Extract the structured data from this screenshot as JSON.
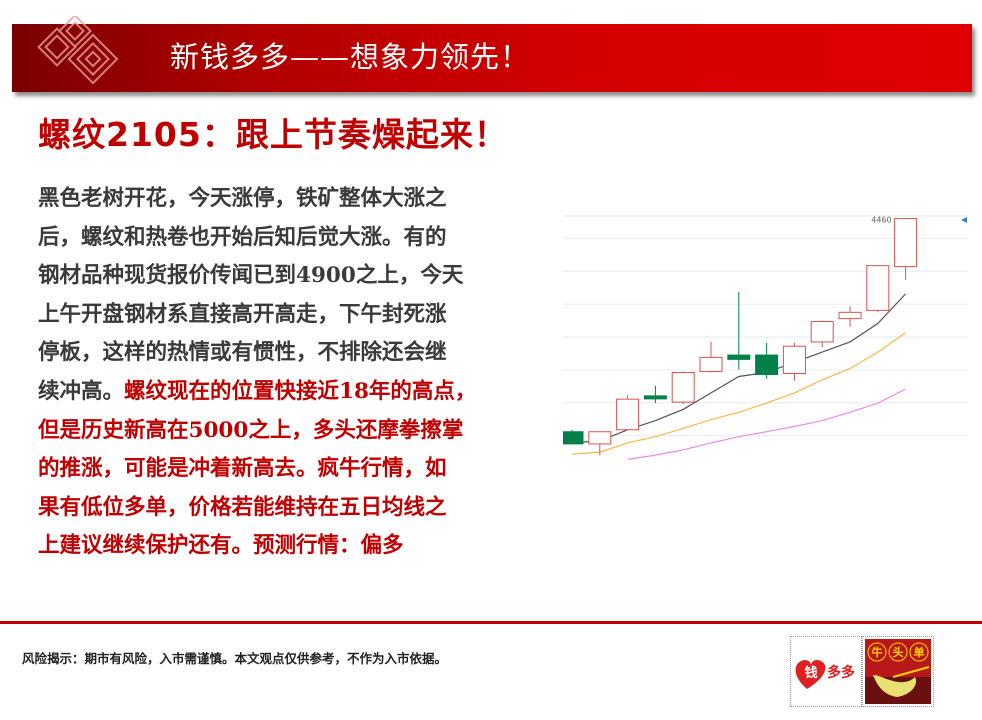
{
  "banner": {
    "title": "新钱多多——想象力领先！",
    "brand_color": "#d40000"
  },
  "headline": "螺纹2105：跟上节奏燥起来！",
  "body": {
    "lines": [
      {
        "black": "黑色老树开花，今天涨停，铁矿整体大涨之",
        "red": ""
      },
      {
        "black": "后，螺纹和热卷也开始后知后觉大涨。有的",
        "red": ""
      },
      {
        "black": "钢材品种现货报价传闻已到4900之上，今天",
        "red": ""
      },
      {
        "black": "上午开盘钢材系直接高开高走，下午封死涨",
        "red": ""
      },
      {
        "black": "停板，这样的热情或有惯性，不排除还会继",
        "red": ""
      },
      {
        "black": "续冲高。",
        "red": "螺纹现在的位置快接近18年的高点，"
      },
      {
        "black": "",
        "red": "但是历史新高在5000之上，多头还摩拳擦掌"
      },
      {
        "black": "",
        "red": "的推涨，可能是冲着新高去。疯牛行情，如"
      },
      {
        "black": "",
        "red": "果有低位多单，价格若能维持在五日均线之"
      },
      {
        "black": "",
        "red": "上建议继续保护还有。预测行情：偏多"
      }
    ],
    "text_color": "#3a3a3a",
    "highlight_color": "#c00000"
  },
  "chart_data": {
    "type": "candlestick",
    "ylim": [
      3720,
      4480
    ],
    "grid": true,
    "gridlines": [
      3800,
      3900,
      4000,
      4100,
      4200,
      4300,
      4400
    ],
    "annotation": "4460",
    "up_color": "#d9534f",
    "down_color": "#00814a",
    "candles": [
      {
        "open": 3812,
        "high": 3818,
        "low": 3775,
        "close": 3775
      },
      {
        "open": 3775,
        "high": 3812,
        "low": 3741,
        "close": 3812
      },
      {
        "open": 3818,
        "high": 3924,
        "low": 3818,
        "close": 3911
      },
      {
        "open": 3921,
        "high": 3952,
        "low": 3899,
        "close": 3914
      },
      {
        "open": 3902,
        "high": 3995,
        "low": 3896,
        "close": 3992
      },
      {
        "open": 3995,
        "high": 4085,
        "low": 3992,
        "close": 4038
      },
      {
        "open": 4045,
        "high": 4237,
        "low": 4001,
        "close": 4032
      },
      {
        "open": 4045,
        "high": 4082,
        "low": 3973,
        "close": 3986
      },
      {
        "open": 3989,
        "high": 4082,
        "low": 3967,
        "close": 4072
      },
      {
        "open": 4085,
        "high": 4150,
        "low": 4069,
        "close": 4147
      },
      {
        "open": 4156,
        "high": 4193,
        "low": 4131,
        "close": 4175
      },
      {
        "open": 4181,
        "high": 4317,
        "low": 4175,
        "close": 4317
      },
      {
        "open": 4314,
        "high": 4460,
        "low": 4274,
        "close": 4460
      }
    ],
    "series": [
      {
        "color": "#555555",
        "values": [
          3778,
          3784,
          3818,
          3846,
          3880,
          3930,
          3980,
          3992,
          4023,
          4054,
          4085,
          4141,
          4231
        ]
      },
      {
        "color": "#f5b94f",
        "values": [
          3744,
          3750,
          3778,
          3797,
          3822,
          3849,
          3871,
          3899,
          3930,
          3970,
          4004,
          4054,
          4113
        ]
      },
      {
        "color": "#f08ae8",
        "values": [
          null,
          null,
          3728,
          3741,
          3757,
          3778,
          3797,
          3812,
          3828,
          3846,
          3871,
          3899,
          3942
        ]
      }
    ]
  },
  "footer": "风险揭示：期市有风险，入市需谨慎。本文观点仅供参考，不作为入市依据。",
  "logos": {
    "left": "钱多多",
    "right": "牛头单"
  }
}
